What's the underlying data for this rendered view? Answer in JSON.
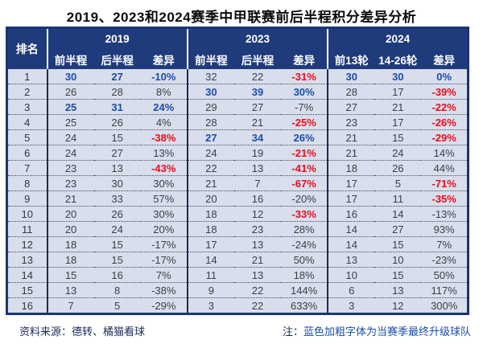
{
  "title": "2019、2023和2024赛季中甲联赛前后半程积分差异分析",
  "table": {
    "rank_header": "排名",
    "groups": [
      {
        "year": "2019",
        "cols": [
          "前半程",
          "后半程",
          "差异"
        ]
      },
      {
        "year": "2023",
        "cols": [
          "前半程",
          "后半程",
          "差异"
        ]
      },
      {
        "year": "2024",
        "cols": [
          "前13轮",
          "14-26轮",
          "差异"
        ]
      }
    ],
    "rows": [
      {
        "rank": "1",
        "cells": [
          [
            "30",
            "blue"
          ],
          [
            "27",
            "blue"
          ],
          [
            "-10%",
            "blue"
          ],
          [
            "32",
            "dark"
          ],
          [
            "22",
            "dark"
          ],
          [
            "-31%",
            "red"
          ],
          [
            "30",
            "blue"
          ],
          [
            "30",
            "blue"
          ],
          [
            "0%",
            "blue"
          ]
        ]
      },
      {
        "rank": "2",
        "cells": [
          [
            "26",
            "dark"
          ],
          [
            "28",
            "dark"
          ],
          [
            "8%",
            "dark"
          ],
          [
            "30",
            "blue"
          ],
          [
            "39",
            "blue"
          ],
          [
            "30%",
            "blue"
          ],
          [
            "28",
            "dark"
          ],
          [
            "17",
            "dark"
          ],
          [
            "-39%",
            "red"
          ]
        ]
      },
      {
        "rank": "3",
        "cells": [
          [
            "25",
            "blue"
          ],
          [
            "31",
            "blue"
          ],
          [
            "24%",
            "blue"
          ],
          [
            "29",
            "dark"
          ],
          [
            "27",
            "dark"
          ],
          [
            "-7%",
            "dark"
          ],
          [
            "27",
            "dark"
          ],
          [
            "21",
            "dark"
          ],
          [
            "-22%",
            "red"
          ]
        ]
      },
      {
        "rank": "4",
        "cells": [
          [
            "25",
            "dark"
          ],
          [
            "26",
            "dark"
          ],
          [
            "4%",
            "dark"
          ],
          [
            "28",
            "dark"
          ],
          [
            "21",
            "dark"
          ],
          [
            "-25%",
            "red"
          ],
          [
            "23",
            "dark"
          ],
          [
            "17",
            "dark"
          ],
          [
            "-26%",
            "red"
          ]
        ]
      },
      {
        "rank": "5",
        "cells": [
          [
            "24",
            "dark"
          ],
          [
            "15",
            "dark"
          ],
          [
            "-38%",
            "red"
          ],
          [
            "27",
            "blue"
          ],
          [
            "34",
            "blue"
          ],
          [
            "26%",
            "blue"
          ],
          [
            "21",
            "dark"
          ],
          [
            "15",
            "dark"
          ],
          [
            "-29%",
            "red"
          ]
        ]
      },
      {
        "rank": "6",
        "cells": [
          [
            "24",
            "dark"
          ],
          [
            "27",
            "dark"
          ],
          [
            "13%",
            "dark"
          ],
          [
            "24",
            "dark"
          ],
          [
            "19",
            "dark"
          ],
          [
            "-21%",
            "red"
          ],
          [
            "21",
            "dark"
          ],
          [
            "24",
            "dark"
          ],
          [
            "14%",
            "dark"
          ]
        ]
      },
      {
        "rank": "7",
        "cells": [
          [
            "23",
            "dark"
          ],
          [
            "13",
            "dark"
          ],
          [
            "-43%",
            "red"
          ],
          [
            "22",
            "dark"
          ],
          [
            "13",
            "dark"
          ],
          [
            "-41%",
            "red"
          ],
          [
            "18",
            "dark"
          ],
          [
            "26",
            "dark"
          ],
          [
            "44%",
            "dark"
          ]
        ]
      },
      {
        "rank": "8",
        "cells": [
          [
            "23",
            "dark"
          ],
          [
            "30",
            "dark"
          ],
          [
            "30%",
            "dark"
          ],
          [
            "21",
            "dark"
          ],
          [
            "7",
            "dark"
          ],
          [
            "-67%",
            "red"
          ],
          [
            "17",
            "dark"
          ],
          [
            "5",
            "dark"
          ],
          [
            "-71%",
            "red"
          ]
        ]
      },
      {
        "rank": "9",
        "cells": [
          [
            "21",
            "dark"
          ],
          [
            "33",
            "dark"
          ],
          [
            "57%",
            "dark"
          ],
          [
            "20",
            "dark"
          ],
          [
            "16",
            "dark"
          ],
          [
            "-20%",
            "dark"
          ],
          [
            "17",
            "dark"
          ],
          [
            "11",
            "dark"
          ],
          [
            "-35%",
            "red"
          ]
        ]
      },
      {
        "rank": "10",
        "cells": [
          [
            "20",
            "dark"
          ],
          [
            "26",
            "dark"
          ],
          [
            "30%",
            "dark"
          ],
          [
            "18",
            "dark"
          ],
          [
            "12",
            "dark"
          ],
          [
            "-33%",
            "red"
          ],
          [
            "16",
            "dark"
          ],
          [
            "14",
            "dark"
          ],
          [
            "-13%",
            "dark"
          ]
        ]
      },
      {
        "rank": "11",
        "cells": [
          [
            "20",
            "dark"
          ],
          [
            "24",
            "dark"
          ],
          [
            "20%",
            "dark"
          ],
          [
            "18",
            "dark"
          ],
          [
            "23",
            "dark"
          ],
          [
            "28%",
            "dark"
          ],
          [
            "14",
            "dark"
          ],
          [
            "27",
            "dark"
          ],
          [
            "93%",
            "dark"
          ]
        ]
      },
      {
        "rank": "12",
        "cells": [
          [
            "18",
            "dark"
          ],
          [
            "15",
            "dark"
          ],
          [
            "-17%",
            "dark"
          ],
          [
            "17",
            "dark"
          ],
          [
            "13",
            "dark"
          ],
          [
            "-24%",
            "dark"
          ],
          [
            "14",
            "dark"
          ],
          [
            "15",
            "dark"
          ],
          [
            "7%",
            "dark"
          ]
        ]
      },
      {
        "rank": "13",
        "cells": [
          [
            "18",
            "dark"
          ],
          [
            "15",
            "dark"
          ],
          [
            "-17%",
            "dark"
          ],
          [
            "14",
            "dark"
          ],
          [
            "21",
            "dark"
          ],
          [
            "50%",
            "dark"
          ],
          [
            "13",
            "dark"
          ],
          [
            "10",
            "dark"
          ],
          [
            "-23%",
            "dark"
          ]
        ]
      },
      {
        "rank": "14",
        "cells": [
          [
            "15",
            "dark"
          ],
          [
            "16",
            "dark"
          ],
          [
            "7%",
            "dark"
          ],
          [
            "11",
            "dark"
          ],
          [
            "13",
            "dark"
          ],
          [
            "18%",
            "dark"
          ],
          [
            "10",
            "dark"
          ],
          [
            "15",
            "dark"
          ],
          [
            "50%",
            "dark"
          ]
        ]
      },
      {
        "rank": "15",
        "cells": [
          [
            "13",
            "dark"
          ],
          [
            "8",
            "dark"
          ],
          [
            "-38%",
            "dark"
          ],
          [
            "9",
            "dark"
          ],
          [
            "22",
            "dark"
          ],
          [
            "144%",
            "dark"
          ],
          [
            "6",
            "dark"
          ],
          [
            "13",
            "dark"
          ],
          [
            "117%",
            "dark"
          ]
        ]
      },
      {
        "rank": "16",
        "cells": [
          [
            "7",
            "dark"
          ],
          [
            "5",
            "dark"
          ],
          [
            "-29%",
            "dark"
          ],
          [
            "3",
            "dark"
          ],
          [
            "22",
            "dark"
          ],
          [
            "633%",
            "dark"
          ],
          [
            "3",
            "dark"
          ],
          [
            "12",
            "dark"
          ],
          [
            "300%",
            "dark"
          ]
        ]
      }
    ]
  },
  "footer": {
    "source": "资料来源：德转、橘猫看球",
    "note_prefix": "注：",
    "note": "蓝色加粗字体为当赛季最终升级球队"
  },
  "colors": {
    "header_bg": "#1f3b7c",
    "row_bg": "#d8deeb",
    "promoted_blue": "#1d4da6",
    "negative_red": "#ee0a1e",
    "text_dark": "#3a3f48"
  },
  "chart_data": {
    "type": "table",
    "title": "2019、2023和2024赛季中甲联赛前后半程积分差异分析",
    "column_groups": [
      "2019",
      "2023",
      "2024"
    ],
    "columns": [
      "排名",
      "2019 前半程",
      "2019 后半程",
      "2019 差异",
      "2023 前半程",
      "2023 后半程",
      "2023 差异",
      "2024 前13轮",
      "2024 14-26轮",
      "2024 差异"
    ],
    "rows": [
      [
        1,
        30,
        27,
        "-10%",
        32,
        22,
        "-31%",
        30,
        30,
        "0%"
      ],
      [
        2,
        26,
        28,
        "8%",
        30,
        39,
        "30%",
        28,
        17,
        "-39%"
      ],
      [
        3,
        25,
        31,
        "24%",
        29,
        27,
        "-7%",
        27,
        21,
        "-22%"
      ],
      [
        4,
        25,
        26,
        "4%",
        28,
        21,
        "-25%",
        23,
        17,
        "-26%"
      ],
      [
        5,
        24,
        15,
        "-38%",
        27,
        34,
        "26%",
        21,
        15,
        "-29%"
      ],
      [
        6,
        24,
        27,
        "13%",
        24,
        19,
        "-21%",
        21,
        24,
        "14%"
      ],
      [
        7,
        23,
        13,
        "-43%",
        22,
        13,
        "-41%",
        18,
        26,
        "44%"
      ],
      [
        8,
        23,
        30,
        "30%",
        21,
        7,
        "-67%",
        17,
        5,
        "-71%"
      ],
      [
        9,
        21,
        33,
        "57%",
        20,
        16,
        "-20%",
        17,
        11,
        "-35%"
      ],
      [
        10,
        20,
        26,
        "30%",
        18,
        12,
        "-33%",
        16,
        14,
        "-13%"
      ],
      [
        11,
        20,
        24,
        "20%",
        18,
        23,
        "28%",
        14,
        27,
        "93%"
      ],
      [
        12,
        18,
        15,
        "-17%",
        17,
        13,
        "-24%",
        14,
        15,
        "7%"
      ],
      [
        13,
        18,
        15,
        "-17%",
        14,
        21,
        "50%",
        13,
        10,
        "-23%"
      ],
      [
        14,
        15,
        16,
        "7%",
        11,
        13,
        "18%",
        10,
        15,
        "50%"
      ],
      [
        15,
        13,
        8,
        "-38%",
        9,
        22,
        "144%",
        6,
        13,
        "117%"
      ],
      [
        16,
        7,
        5,
        "-29%",
        3,
        22,
        "633%",
        3,
        12,
        "300%"
      ]
    ],
    "legend": "蓝色加粗字体为当赛季最终升级球队（blue bold = promoted teams）；红色为大幅下滑差异"
  }
}
